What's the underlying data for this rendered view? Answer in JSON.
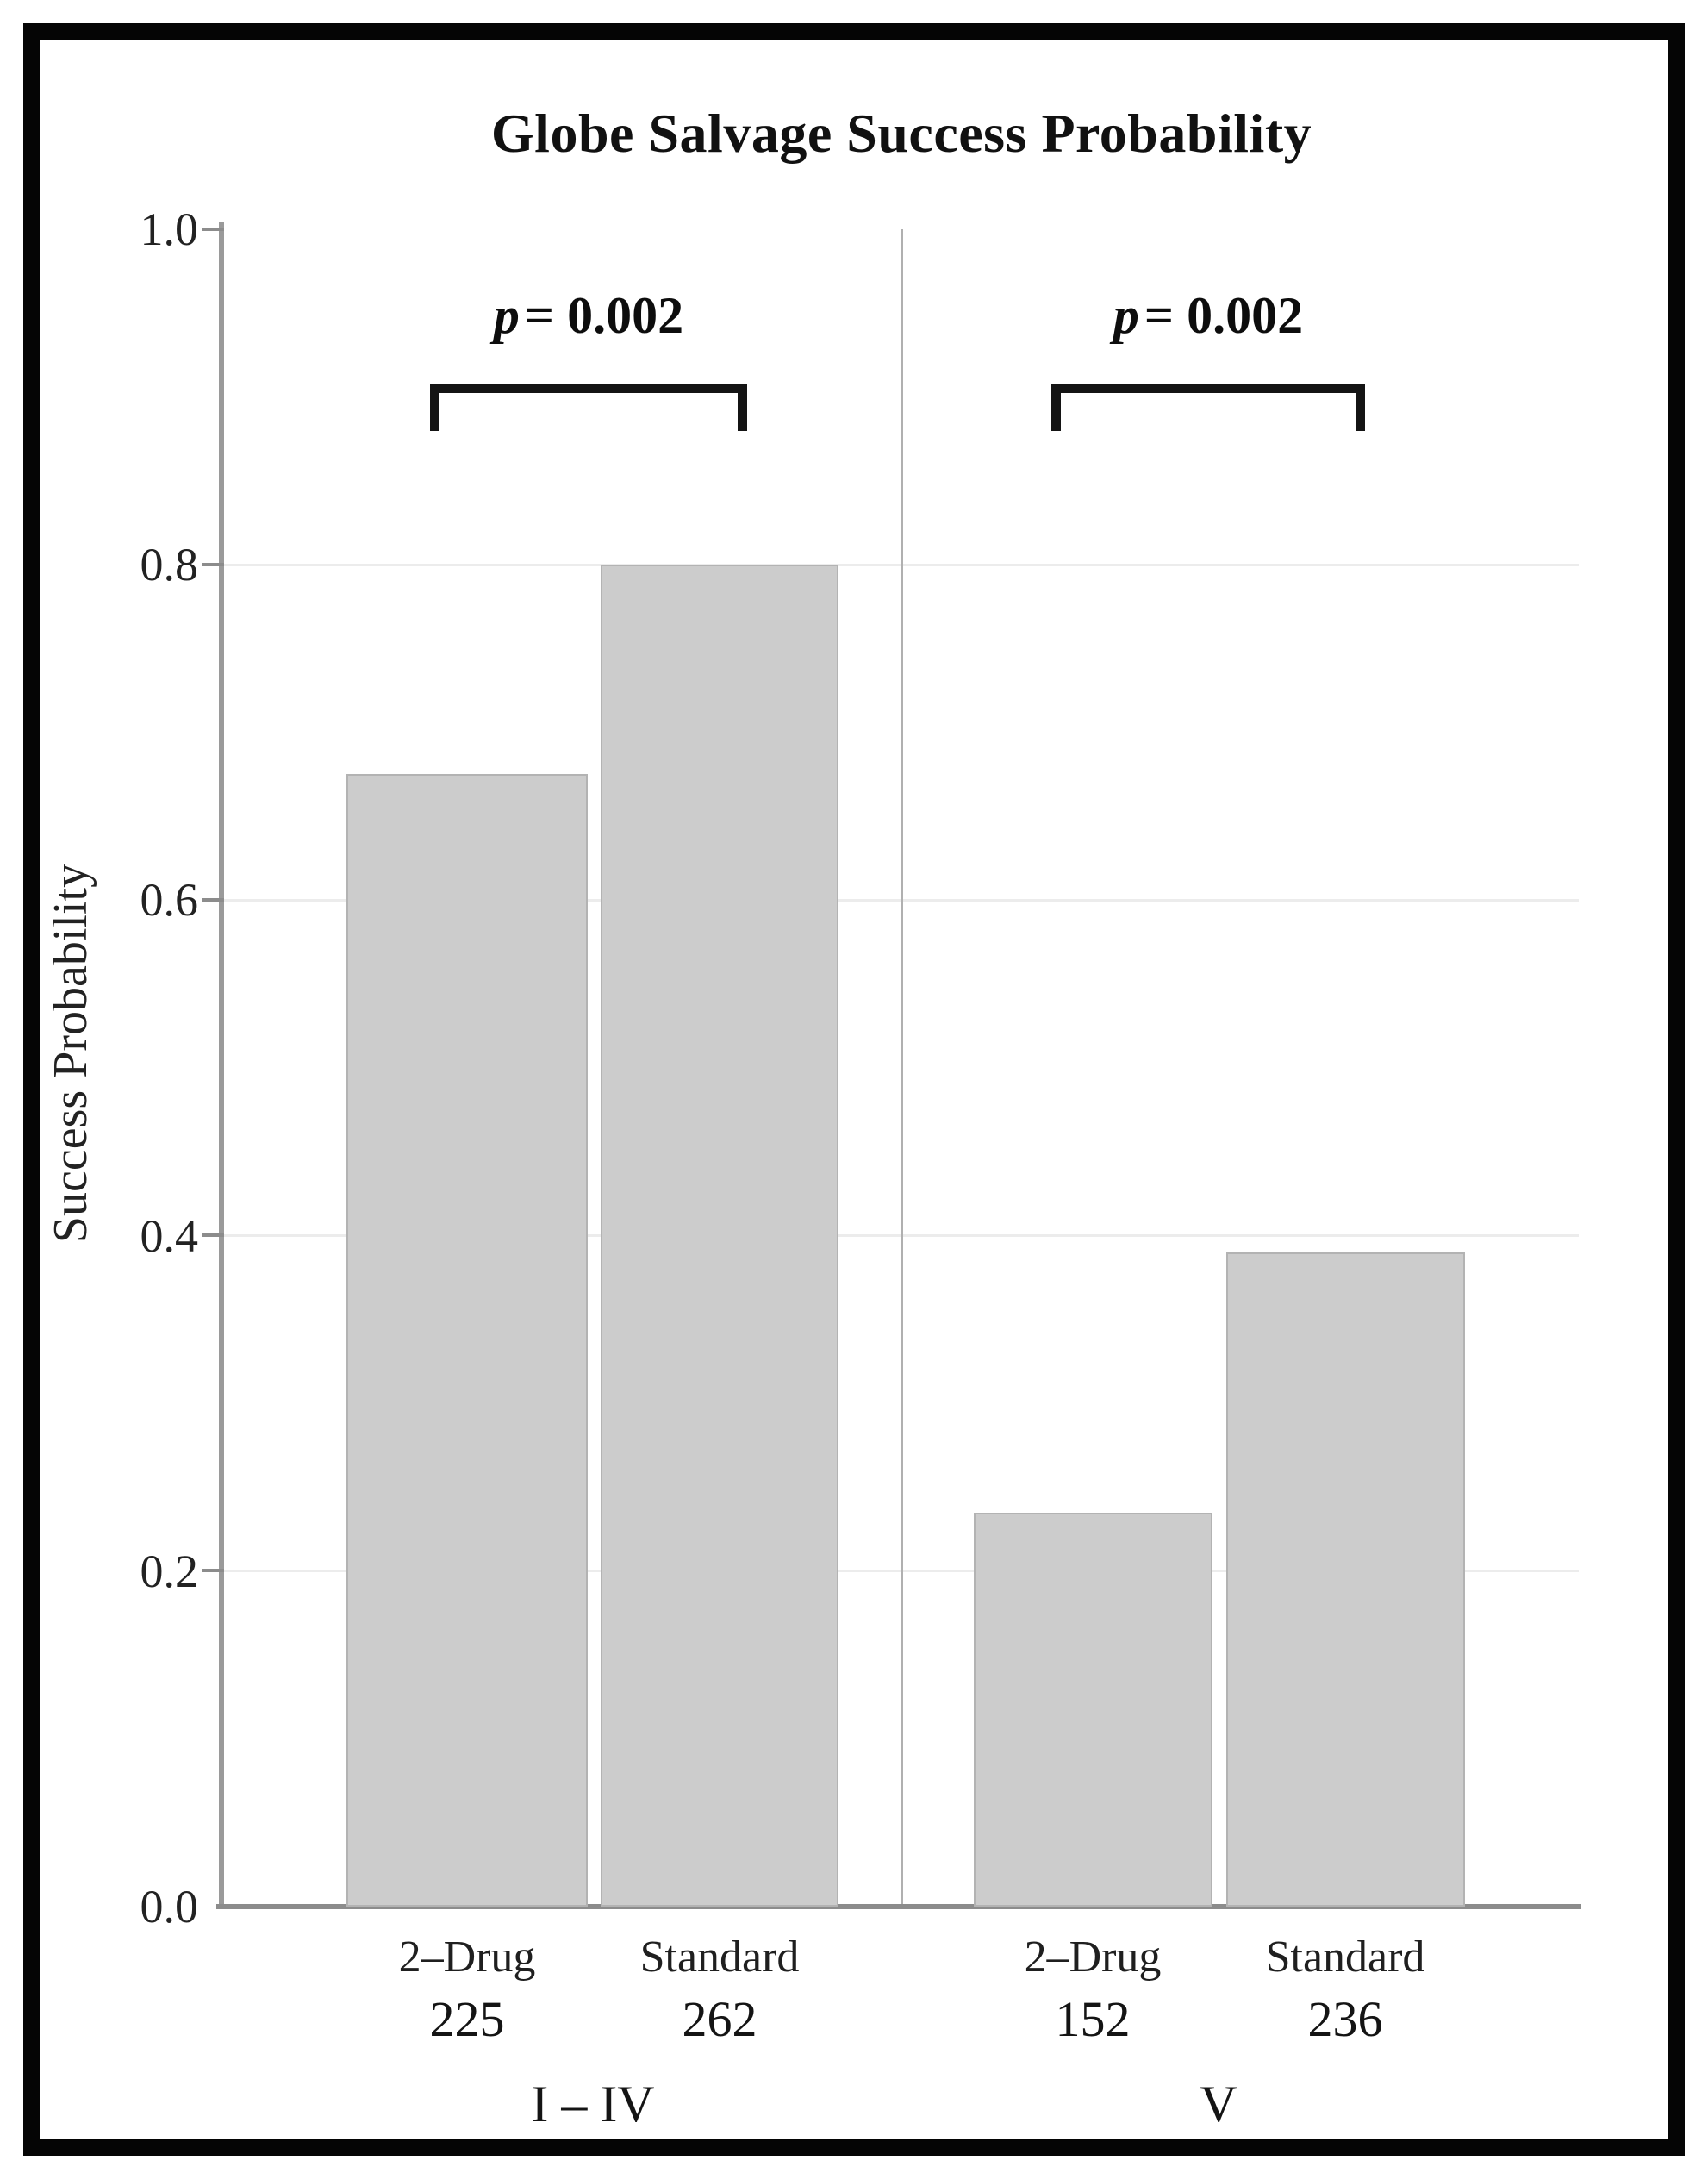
{
  "figure": {
    "border_color": "#050505",
    "background_color": "#ffffff"
  },
  "chart_data": {
    "type": "bar",
    "title": "Globe Salvage Success Probability",
    "ylabel": "Success Probability",
    "xlabel": "",
    "ylim": [
      0.0,
      1.0
    ],
    "yticks": [
      0.0,
      0.2,
      0.4,
      0.6,
      0.8,
      1.0
    ],
    "ytick_labels": [
      "0.0",
      "0.2",
      "0.4",
      "0.6",
      "0.8",
      "1.0"
    ],
    "grid": "horizontal light-gray lines at 0.2 intervals",
    "legend": "none",
    "bar_color": "#cccccc",
    "groups": [
      {
        "label": "I – IV",
        "significance": "p = 0.002",
        "significance_var": "p",
        "significance_rest": "= 0.002",
        "bars": [
          {
            "label": "2–Drug",
            "n": "225",
            "value": 0.675
          },
          {
            "label": "Standard",
            "n": "262",
            "value": 0.8
          }
        ]
      },
      {
        "label": "V",
        "significance": "p = 0.002",
        "significance_var": "p",
        "significance_rest": "= 0.002",
        "bars": [
          {
            "label": "2–Drug",
            "n": "152",
            "value": 0.235
          },
          {
            "label": "Standard",
            "n": "236",
            "value": 0.39
          }
        ]
      }
    ]
  }
}
